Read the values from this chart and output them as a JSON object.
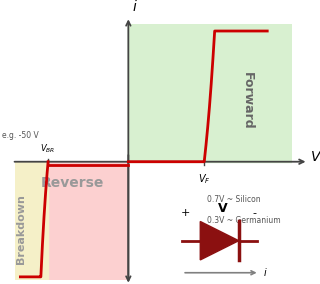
{
  "bg_color": "#ffffff",
  "forward_region_color": "#d8f0d0",
  "reverse_region_color": "#fcd0d0",
  "breakdown_region_color": "#f5f0c8",
  "axis_color": "#444444",
  "curve_color": "#cc0000",
  "diode_color": "#8b1010",
  "forward_label": "Forward",
  "reverse_label": "Reverse",
  "breakdown_label": "Breakdown",
  "v_label": "V",
  "i_label": "i",
  "silicon_label": "0.7V ~ Silicon",
  "germanium_label": "0.3V ~ Germanium",
  "eg_label": "e.g. -50 V",
  "plus_label": "+",
  "minus_label": "-",
  "cap_v_label": "V",
  "xl": -0.78,
  "xr": 1.12,
  "yb": -0.88,
  "yt": 1.02,
  "vbr": -0.55,
  "vf": 0.52
}
